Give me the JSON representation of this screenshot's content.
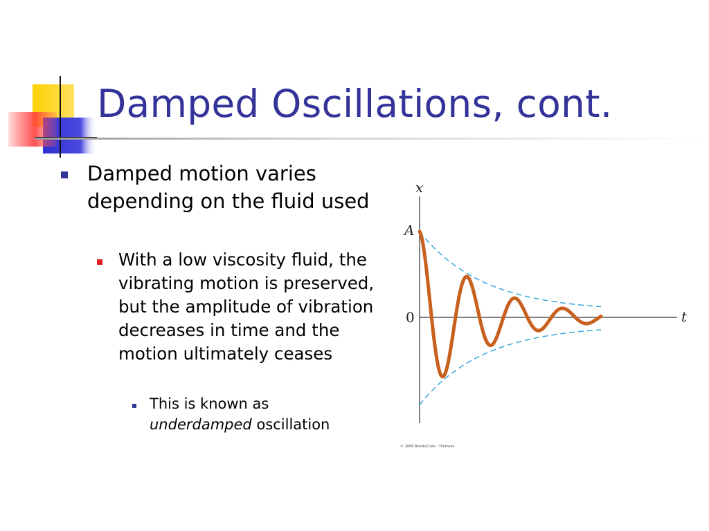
{
  "slide": {
    "title": "Damped Oscillations, cont.",
    "bullets": {
      "level1": "Damped motion varies depending on the fluid used",
      "level2": "With a low viscosity fluid, the vibrating motion is preserved, but the amplitude of vibration decreases in time and the motion ultimately ceases",
      "level3_prefix": "This is known as",
      "level3_emphasis": "underdamped",
      "level3_suffix": "oscillation"
    }
  },
  "colors": {
    "title": "#333399",
    "bullet_level1": "#333399",
    "bullet_level2": "#e02020",
    "bullet_level3": "#333399",
    "curve": "#c8601e",
    "envelope": "#2aa0d8",
    "logo_yellow": "#ffd200",
    "logo_blue": "#2f2fd0",
    "logo_red": "#ff3030"
  },
  "chart_data": {
    "type": "line",
    "xlabel": "t",
    "ylabel": "x",
    "amplitude_label": "A",
    "zero_label": "0",
    "credit": "© 2006 Brooks/Cole - Thomson",
    "amplitude": 1,
    "decay_rate": 0.4,
    "omega": 3.35,
    "t_range": [
      0,
      7.1
    ],
    "envelope": "±A·e^(−bt/2m)",
    "series": [
      {
        "values_formula": "A·e^(−0.4t)·cos(3.35t)"
      }
    ]
  }
}
